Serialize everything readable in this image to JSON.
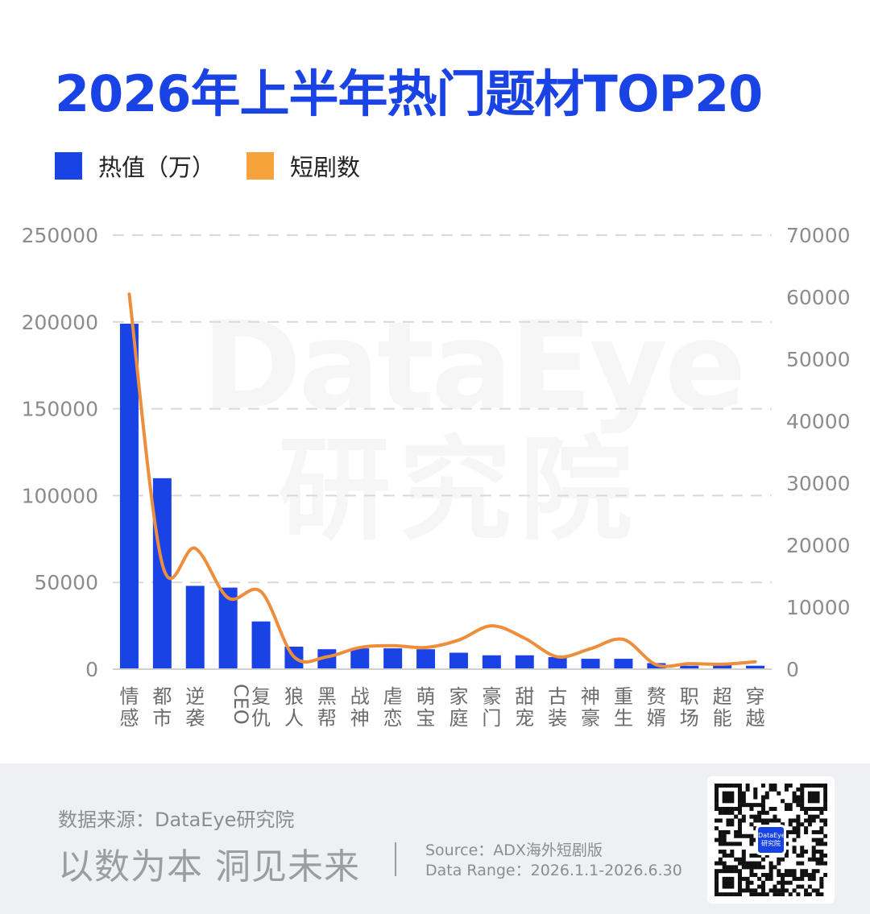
{
  "title": "2026年上半年热门题材TOP20",
  "watermark": {
    "line1": "DataEye",
    "line2": "研究院"
  },
  "legend": [
    {
      "label": "热值（万）",
      "color": "#1a43e6"
    },
    {
      "label": "短剧数",
      "color": "#f5a33a"
    }
  ],
  "colors": {
    "bar": "#1a43e6",
    "line": "#ee8e3c",
    "title": "#1a43e6"
  },
  "chart_data": {
    "type": "bar",
    "categories": [
      "情感",
      "都市",
      "逆袭",
      "CEO",
      "复仇",
      "狼人",
      "黑帮",
      "战神",
      "虐恋",
      "萌宝",
      "家庭",
      "豪门",
      "甜宠",
      "古装",
      "神豪",
      "重生",
      "赘婿",
      "职场",
      "超能",
      "穿越"
    ],
    "series": [
      {
        "name": "热值（万）",
        "type": "bar",
        "axis": "left",
        "values": [
          199000,
          110000,
          48000,
          47000,
          27500,
          13000,
          11500,
          12000,
          12000,
          11500,
          9500,
          8000,
          8000,
          7000,
          6000,
          6000,
          3500,
          2000,
          2500,
          2000
        ]
      },
      {
        "name": "短剧数",
        "type": "line",
        "axis": "right",
        "values": [
          60500,
          17000,
          19500,
          11500,
          12500,
          2000,
          2000,
          3500,
          3800,
          3500,
          4700,
          7000,
          5000,
          2000,
          3300,
          4800,
          700,
          900,
          800,
          1200
        ]
      }
    ],
    "ylim_left": [
      0,
      250000
    ],
    "ylim_right": [
      0,
      70000
    ],
    "yticks_left": [
      "250000",
      "200000",
      "150000",
      "100000",
      "50000",
      "0"
    ],
    "yticks_right": [
      "70000",
      "60000",
      "50000",
      "40000",
      "30000",
      "20000",
      "10000",
      "0"
    ],
    "grid": true,
    "legend_position": "top-left"
  },
  "footer": {
    "source": "数据来源：DataEye研究院",
    "slogan": "以数为本 洞见未来",
    "source_en": "Source：ADX海外短剧版",
    "date_range": "Data Range：2026.1.1-2026.6.30",
    "qr_icon": "qr-code-icon",
    "qr_logo_text": "DataEye 研究院"
  }
}
